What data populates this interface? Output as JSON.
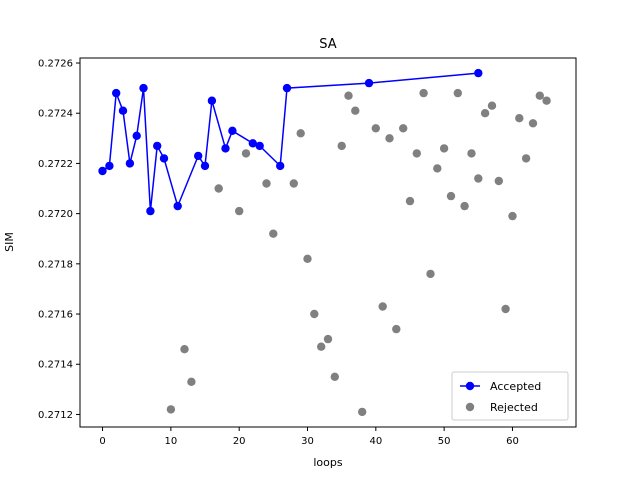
{
  "chart_data": {
    "type": "scatter",
    "title": "SA",
    "xlabel": "loops",
    "ylabel": "SIM",
    "xlim": [
      -3.3,
      69.3
    ],
    "ylim": [
      0.27115,
      0.27262
    ],
    "xticks": [
      0,
      10,
      20,
      30,
      40,
      50,
      60
    ],
    "yticks": [
      0.2712,
      0.2714,
      0.2716,
      0.2718,
      0.272,
      0.2722,
      0.2724,
      0.2726
    ],
    "ytick_labels": [
      "0.2712",
      "0.2714",
      "0.2716",
      "0.2718",
      "0.2720",
      "0.2722",
      "0.2724",
      "0.2726"
    ],
    "grid": false,
    "legend_position": "lower-right",
    "series": [
      {
        "name": "Accepted",
        "style": "line-markers",
        "color": "#0000ff",
        "points": [
          [
            0,
            0.27217
          ],
          [
            1,
            0.27219
          ],
          [
            2,
            0.27248
          ],
          [
            3,
            0.27241
          ],
          [
            4,
            0.2722
          ],
          [
            5,
            0.27231
          ],
          [
            6,
            0.2725
          ],
          [
            7,
            0.27201
          ],
          [
            8,
            0.27227
          ],
          [
            9,
            0.27222
          ],
          [
            11,
            0.27203
          ],
          [
            14,
            0.27223
          ],
          [
            15,
            0.27219
          ],
          [
            16,
            0.27245
          ],
          [
            18,
            0.27226
          ],
          [
            19,
            0.27233
          ],
          [
            22,
            0.27228
          ],
          [
            23,
            0.27227
          ],
          [
            26,
            0.27219
          ],
          [
            27,
            0.2725
          ],
          [
            39,
            0.27252
          ],
          [
            55,
            0.27256
          ]
        ]
      },
      {
        "name": "Rejected",
        "style": "markers",
        "color": "#808080",
        "points": [
          [
            10,
            0.27122
          ],
          [
            12,
            0.27146
          ],
          [
            13,
            0.27133
          ],
          [
            17,
            0.2721
          ],
          [
            20,
            0.27201
          ],
          [
            21,
            0.27224
          ],
          [
            24,
            0.27212
          ],
          [
            25,
            0.27192
          ],
          [
            28,
            0.27212
          ],
          [
            29,
            0.27232
          ],
          [
            30,
            0.27182
          ],
          [
            31,
            0.2716
          ],
          [
            32,
            0.27147
          ],
          [
            33,
            0.2715
          ],
          [
            34,
            0.27135
          ],
          [
            35,
            0.27227
          ],
          [
            36,
            0.27247
          ],
          [
            37,
            0.27241
          ],
          [
            38,
            0.27121
          ],
          [
            40,
            0.27234
          ],
          [
            41,
            0.27163
          ],
          [
            42,
            0.2723
          ],
          [
            43,
            0.27154
          ],
          [
            44,
            0.27234
          ],
          [
            45,
            0.27205
          ],
          [
            46,
            0.27224
          ],
          [
            47,
            0.27248
          ],
          [
            48,
            0.27176
          ],
          [
            49,
            0.27218
          ],
          [
            50,
            0.27226
          ],
          [
            51,
            0.27207
          ],
          [
            52,
            0.27248
          ],
          [
            53,
            0.27203
          ],
          [
            54,
            0.27224
          ],
          [
            55,
            0.27214
          ],
          [
            56,
            0.2724
          ],
          [
            57,
            0.27243
          ],
          [
            58,
            0.27213
          ],
          [
            59,
            0.27162
          ],
          [
            60,
            0.27199
          ],
          [
            61,
            0.27238
          ],
          [
            62,
            0.27222
          ],
          [
            63,
            0.27236
          ],
          [
            64,
            0.27247
          ],
          [
            65,
            0.27245
          ]
        ]
      }
    ]
  }
}
